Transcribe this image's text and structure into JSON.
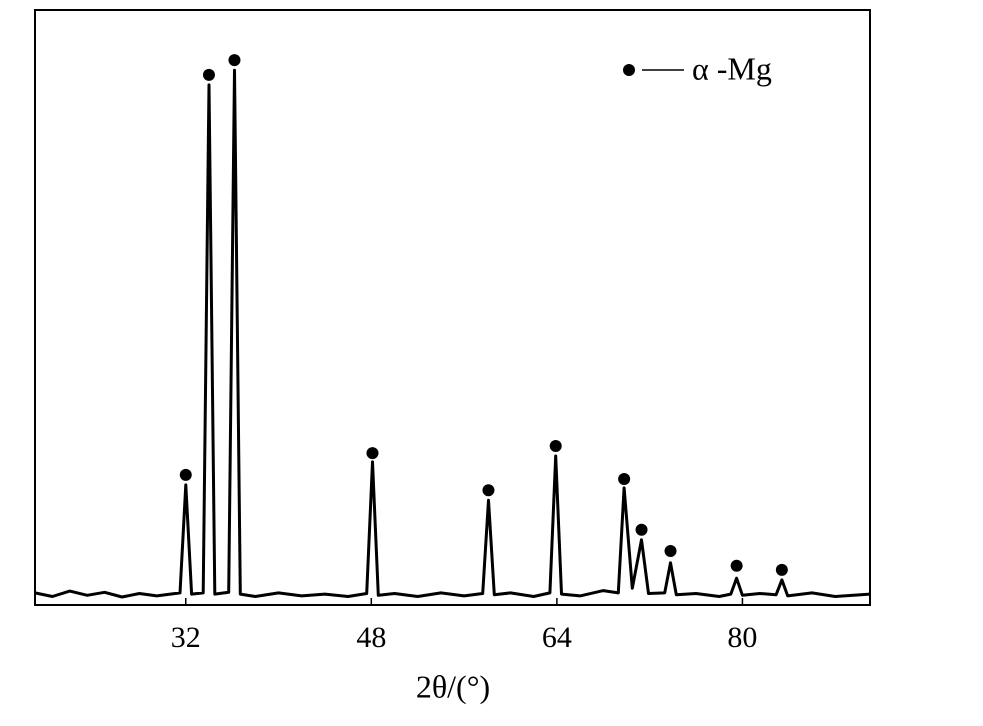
{
  "chart_data": {
    "type": "line",
    "x_label": "2θ/(°)",
    "xlim": [
      19,
      91
    ],
    "ylim": [
      0,
      100
    ],
    "xticks": [
      32,
      48,
      64,
      80
    ],
    "color": "#000000",
    "x": [
      19,
      20.5,
      22,
      23.5,
      25,
      26.5,
      28,
      29.5,
      31.5,
      32,
      32.5,
      33.5,
      34,
      34.5,
      35.7,
      36.2,
      36.7,
      38,
      40,
      42,
      44,
      46,
      47.6,
      48.1,
      48.6,
      50,
      52,
      54,
      56,
      57.6,
      58.1,
      58.6,
      60,
      62,
      63.4,
      63.9,
      64.4,
      66,
      68,
      69.3,
      69.8,
      70.5,
      71.3,
      71.9,
      73.3,
      73.8,
      74.3,
      76,
      78,
      79,
      79.5,
      80,
      81.5,
      82.9,
      83.4,
      83.9,
      86,
      88,
      91
    ],
    "values": [
      1.2,
      0.6,
      1.5,
      0.8,
      1.3,
      0.5,
      1.1,
      0.7,
      1.2,
      19.5,
      1.0,
      1.2,
      87.3,
      1.0,
      1.3,
      89.8,
      1.0,
      0.6,
      1.2,
      0.7,
      1.0,
      0.6,
      1.1,
      23.4,
      0.8,
      1.1,
      0.6,
      1.2,
      0.7,
      1.1,
      16.9,
      0.9,
      1.2,
      0.6,
      1.2,
      24.4,
      1.0,
      0.7,
      1.6,
      1.2,
      19.0,
      2.0,
      10.2,
      1.1,
      1.2,
      6.3,
      0.9,
      1.1,
      0.6,
      1.0,
      3.7,
      0.8,
      1.1,
      0.9,
      3.4,
      0.7,
      1.2,
      0.6,
      1.0
    ],
    "markers": {
      "name": "α -Mg",
      "color": "#000000",
      "x": [
        32,
        34,
        36.2,
        48.1,
        58.1,
        63.9,
        69.8,
        71.3,
        73.8,
        79.5,
        83.4
      ],
      "values": [
        21.2,
        89,
        91.5,
        24.9,
        18.6,
        26.1,
        20.5,
        11.9,
        8.3,
        5.8,
        5.1
      ]
    }
  }
}
